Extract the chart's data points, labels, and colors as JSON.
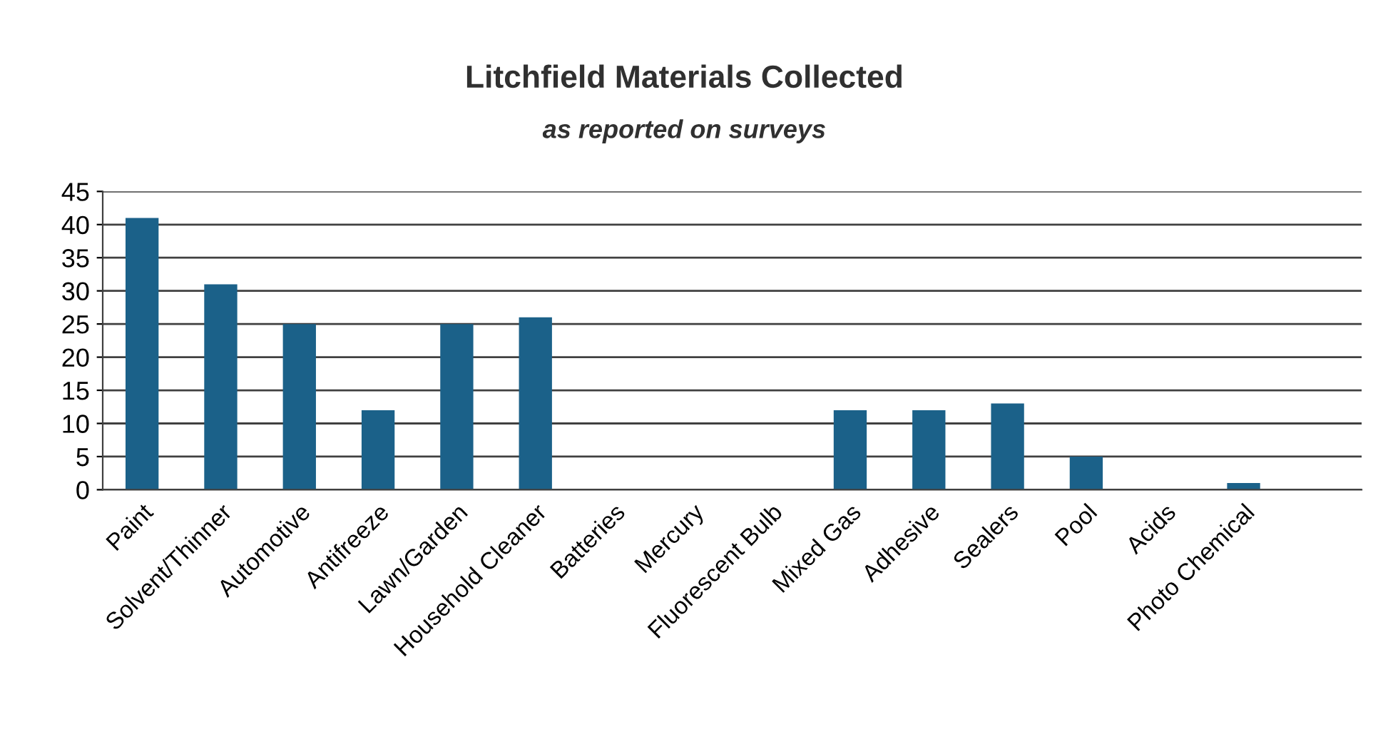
{
  "chart_data": {
    "type": "bar",
    "title": "Litchfield Materials Collected",
    "subtitle": "as reported on surveys",
    "categories": [
      "Paint",
      "Solvent/Thinner",
      "Automotive",
      "Antifreeze",
      "Lawn/Garden",
      "Household Cleaner",
      "Batteries",
      "Mercury",
      "Fluorescent Bulb",
      "Mixed Gas",
      "Adhesive",
      "Sealers",
      "Pool",
      "Acids",
      "Photo Chemical"
    ],
    "values": [
      41,
      31,
      25,
      12,
      25,
      26,
      0,
      0,
      0,
      12,
      12,
      13,
      5,
      0,
      1
    ],
    "color": "#1b6189",
    "ylim": [
      0,
      45
    ],
    "yticks": [
      0,
      5,
      10,
      15,
      20,
      25,
      30,
      35,
      40,
      45
    ],
    "grid": "y"
  }
}
